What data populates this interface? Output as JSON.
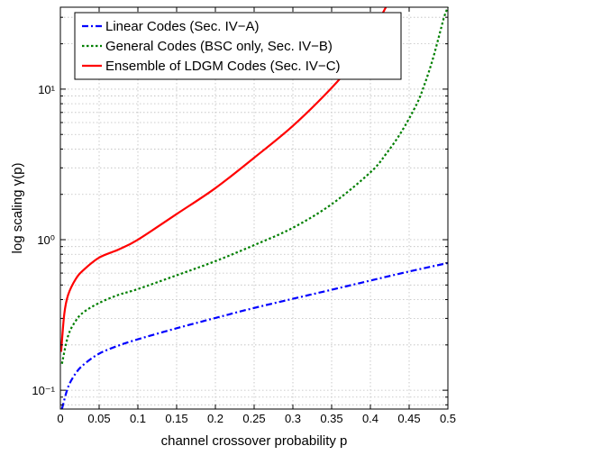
{
  "chart_data": {
    "type": "line",
    "title": "",
    "xlabel": "channel crossover probability  p",
    "ylabel": "log scaling  γ(p)",
    "xlim": [
      0,
      0.5
    ],
    "ylim": [
      0.075,
      35
    ],
    "yscale": "log",
    "grid": true,
    "legend_position": "top-left",
    "x_ticks": [
      0,
      0.05,
      0.1,
      0.15,
      0.2,
      0.25,
      0.3,
      0.35,
      0.4,
      0.45,
      0.5
    ],
    "x_tick_labels": [
      "0",
      "0.05",
      "0.1",
      "0.15",
      "0.2",
      "0.25",
      "0.3",
      "0.35",
      "0.4",
      "0.45",
      "0.5"
    ],
    "y_ticks": [
      0.1,
      1,
      10
    ],
    "y_tick_labels": [
      "10⁻¹",
      "10⁰",
      "10¹"
    ],
    "series": [
      {
        "name": "Linear Codes (Sec. IV−A)",
        "color": "#0000ff",
        "dash": "dashdot",
        "x": [
          0.002,
          0.01,
          0.02,
          0.03,
          0.05,
          0.075,
          0.1,
          0.15,
          0.2,
          0.25,
          0.3,
          0.35,
          0.4,
          0.45,
          0.5
        ],
        "y": [
          0.075,
          0.105,
          0.13,
          0.148,
          0.175,
          0.198,
          0.218,
          0.258,
          0.302,
          0.352,
          0.405,
          0.465,
          0.535,
          0.615,
          0.7
        ]
      },
      {
        "name": "General Codes (BSC only, Sec. IV−B)",
        "color": "#007f00",
        "dash": "dotted",
        "x": [
          0.002,
          0.01,
          0.02,
          0.03,
          0.05,
          0.075,
          0.1,
          0.15,
          0.2,
          0.25,
          0.3,
          0.35,
          0.4,
          0.42,
          0.44,
          0.46,
          0.47,
          0.48,
          0.49,
          0.495,
          0.5
        ],
        "y": [
          0.15,
          0.23,
          0.29,
          0.33,
          0.38,
          0.43,
          0.47,
          0.58,
          0.72,
          0.92,
          1.2,
          1.72,
          2.8,
          3.7,
          5.2,
          8.0,
          10.8,
          15.5,
          24,
          30,
          35
        ]
      },
      {
        "name": "Ensemble of LDGM Codes (Sec. IV−C)",
        "color": "#ff0000",
        "dash": "solid",
        "x": [
          0.001,
          0.005,
          0.01,
          0.02,
          0.03,
          0.05,
          0.075,
          0.1,
          0.15,
          0.2,
          0.25,
          0.3,
          0.35,
          0.38,
          0.4,
          0.41,
          0.42
        ],
        "y": [
          0.18,
          0.32,
          0.43,
          0.55,
          0.63,
          0.76,
          0.86,
          1.0,
          1.48,
          2.2,
          3.5,
          5.7,
          10.2,
          15.5,
          22,
          28,
          35
        ]
      }
    ]
  }
}
